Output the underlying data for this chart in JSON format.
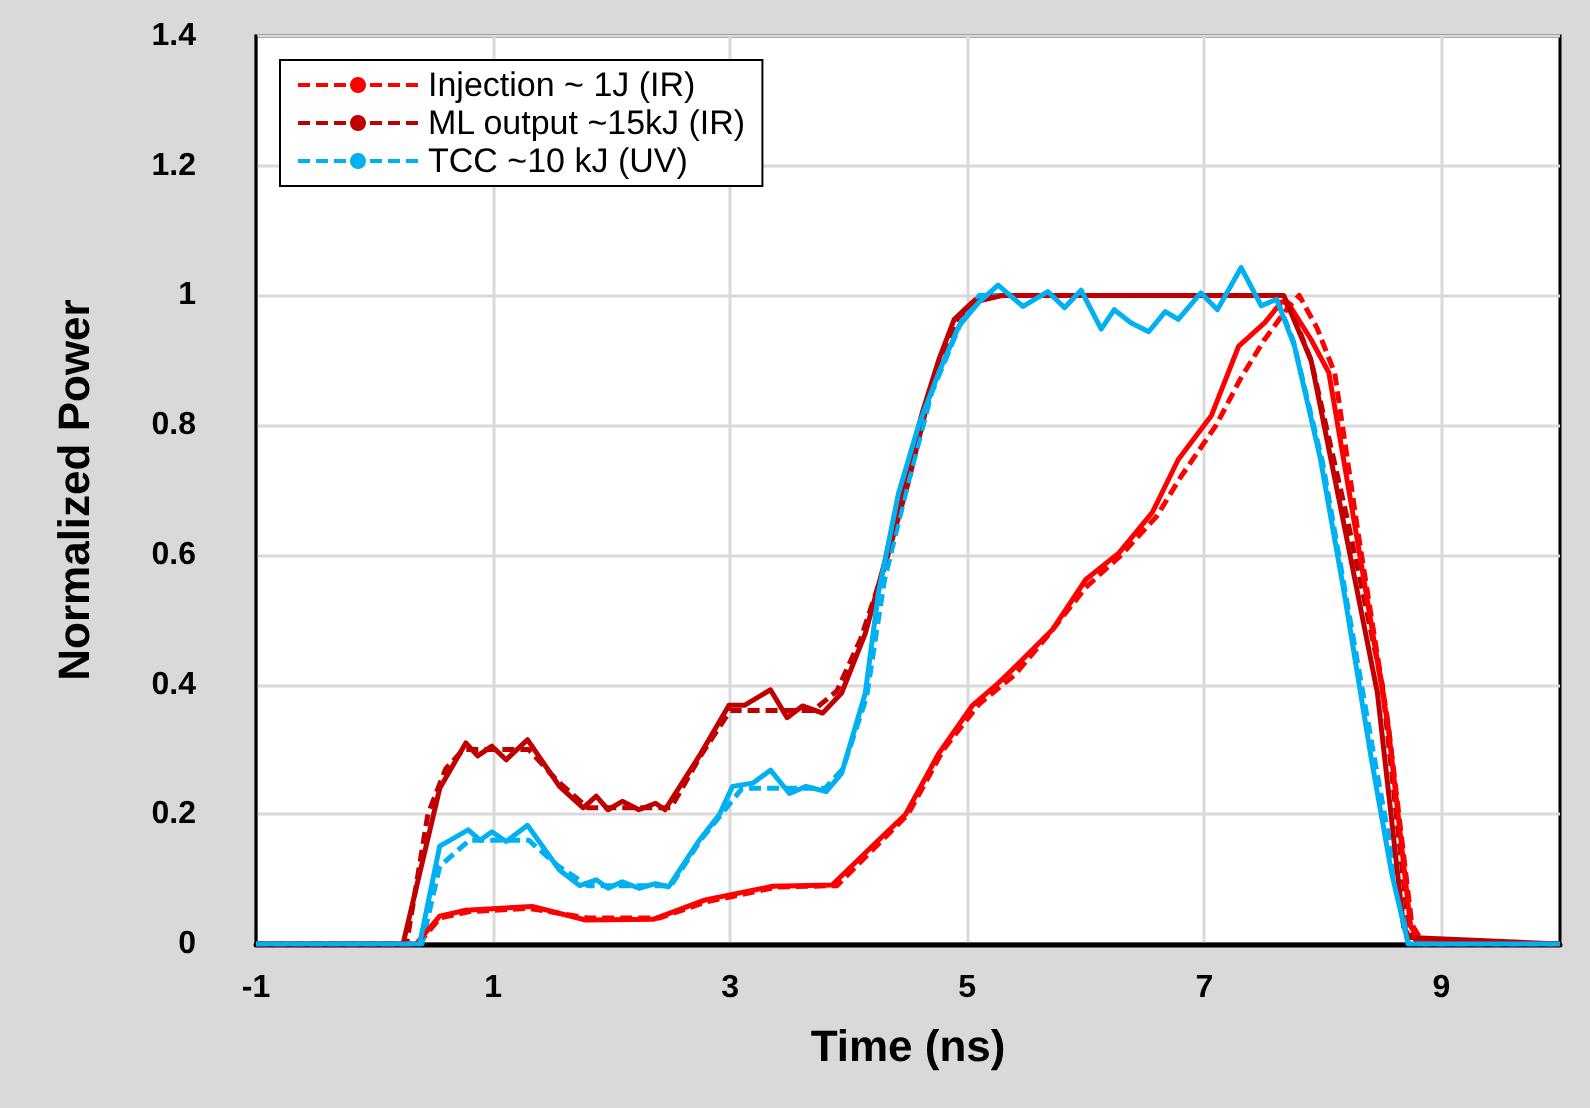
{
  "chart_data": {
    "type": "line",
    "xlabel": "Time (ns)",
    "ylabel": "Normalized Power",
    "xlim": [
      -1,
      10
    ],
    "ylim": [
      0,
      1.4
    ],
    "xticks": [
      -1,
      1,
      3,
      5,
      7,
      9
    ],
    "yticks": [
      0,
      0.2,
      0.4,
      0.6,
      0.8,
      1,
      1.2,
      1.4
    ],
    "grid": true,
    "legend": "top left",
    "marker": "none",
    "series": [
      {
        "name": "Injection ~ 1J (IR)",
        "color": "#ff0000",
        "line_style": "dashed",
        "x": [
          -1,
          0.37,
          0.55,
          0.8,
          1.3,
          1.8,
          2.4,
          2.8,
          3.4,
          3.9,
          4.2,
          4.5,
          4.8,
          5.1,
          5.4,
          5.7,
          6.0,
          6.3,
          6.6,
          6.8,
          7.1,
          7.3,
          7.5,
          7.7,
          7.8,
          7.95,
          8.1,
          8.3,
          8.55,
          8.75,
          8.85,
          10
        ],
        "values": [
          0,
          0,
          0.04,
          0.05,
          0.055,
          0.04,
          0.04,
          0.065,
          0.088,
          0.09,
          0.145,
          0.2,
          0.3,
          0.37,
          0.415,
          0.48,
          0.55,
          0.6,
          0.66,
          0.72,
          0.8,
          0.87,
          0.93,
          0.98,
          1,
          0.95,
          0.88,
          0.63,
          0.34,
          0.03,
          0,
          0
        ]
      },
      {
        "name": "ML output ~15kJ (IR)",
        "color": "#c00000",
        "line_style": "dashed",
        "x": [
          -1,
          0.27,
          0.45,
          0.6,
          0.75,
          1.3,
          1.55,
          1.8,
          2.5,
          2.75,
          3.0,
          3.7,
          3.9,
          4.1,
          4.3,
          4.5,
          4.7,
          4.9,
          5.1,
          7.65,
          7.75,
          7.9,
          8.2,
          8.5,
          8.72,
          8.8,
          10
        ],
        "values": [
          0,
          0,
          0.2,
          0.27,
          0.3,
          0.3,
          0.25,
          0.21,
          0.21,
          0.29,
          0.36,
          0.36,
          0.39,
          0.47,
          0.58,
          0.71,
          0.86,
          0.96,
          1,
          1,
          0.97,
          0.9,
          0.66,
          0.4,
          0.03,
          0,
          0
        ]
      },
      {
        "name": "TCC ~10 kJ (UV)",
        "color": "#00b0f0",
        "line_style": "dashed",
        "x": [
          -1,
          0.4,
          0.55,
          0.8,
          1.3,
          1.55,
          1.8,
          2.5,
          2.75,
          3.1,
          3.8,
          3.95,
          4.15,
          4.3,
          4.5,
          4.7,
          4.95,
          5.1,
          7.6,
          7.75,
          8.0,
          8.2,
          8.45,
          8.72,
          10
        ],
        "values": [
          0,
          0,
          0.12,
          0.16,
          0.16,
          0.12,
          0.09,
          0.09,
          0.16,
          0.24,
          0.24,
          0.27,
          0.38,
          0.56,
          0.71,
          0.85,
          0.96,
          1,
          1,
          0.93,
          0.74,
          0.53,
          0.27,
          0,
          0
        ]
      },
      {
        "color": "#ff0000",
        "line_style": "solid",
        "x": [
          -1,
          0.35,
          0.55,
          0.77,
          1.33,
          1.78,
          2.35,
          2.79,
          3.36,
          3.86,
          4.2,
          4.48,
          4.76,
          5.04,
          5.26,
          5.38,
          5.72,
          6.0,
          6.28,
          6.56,
          6.78,
          7.06,
          7.29,
          7.51,
          7.65,
          7.7,
          7.9,
          8.05,
          8.29,
          8.55,
          8.74,
          8.82,
          10
        ],
        "values": [
          0,
          0,
          0.043,
          0.052,
          0.058,
          0.037,
          0.038,
          0.068,
          0.089,
          0.091,
          0.151,
          0.2,
          0.294,
          0.367,
          0.402,
          0.423,
          0.485,
          0.562,
          0.603,
          0.665,
          0.747,
          0.815,
          0.922,
          0.958,
          0.99,
          0.99,
          0.932,
          0.881,
          0.623,
          0.336,
          0.027,
          0.005,
          0
        ]
      },
      {
        "color": "#c00000",
        "line_style": "solid",
        "x": [
          -1,
          0.24,
          0.55,
          0.77,
          0.87,
          0.99,
          1.11,
          1.29,
          1.56,
          1.76,
          1.87,
          1.97,
          2.09,
          2.23,
          2.37,
          2.45,
          2.74,
          2.99,
          3.12,
          3.34,
          3.48,
          3.61,
          3.78,
          3.94,
          4.14,
          4.31,
          4.47,
          4.62,
          4.76,
          4.89,
          5.04,
          5.3,
          7.67,
          7.9,
          8.18,
          8.46,
          8.68,
          8.73,
          10
        ],
        "values": [
          0,
          0,
          0.24,
          0.31,
          0.29,
          0.305,
          0.284,
          0.315,
          0.243,
          0.21,
          0.228,
          0.207,
          0.22,
          0.207,
          0.217,
          0.207,
          0.29,
          0.368,
          0.368,
          0.392,
          0.349,
          0.367,
          0.356,
          0.387,
          0.479,
          0.593,
          0.716,
          0.819,
          0.901,
          0.963,
          0.989,
          1,
          1,
          0.9,
          0.645,
          0.387,
          0.027,
          0.01,
          0
        ]
      },
      {
        "color": "#00b0f0",
        "line_style": "solid",
        "x": [
          -1,
          0.38,
          0.55,
          0.79,
          0.89,
          0.99,
          1.11,
          1.29,
          1.56,
          1.73,
          1.87,
          1.97,
          2.09,
          2.23,
          2.37,
          2.48,
          2.74,
          2.91,
          3.02,
          3.19,
          3.34,
          3.5,
          3.64,
          3.81,
          3.94,
          4.14,
          4.25,
          4.42,
          4.59,
          4.76,
          4.93,
          5.1,
          5.26,
          5.47,
          5.68,
          5.82,
          5.96,
          6.13,
          6.24,
          6.38,
          6.53,
          6.67,
          6.78,
          6.97,
          7.11,
          7.31,
          7.48,
          7.61,
          7.76,
          7.98,
          8.18,
          8.41,
          8.58,
          8.72,
          10
        ],
        "values": [
          0,
          0,
          0.151,
          0.176,
          0.16,
          0.173,
          0.158,
          0.183,
          0.114,
          0.09,
          0.099,
          0.086,
          0.096,
          0.086,
          0.093,
          0.088,
          0.16,
          0.2,
          0.243,
          0.248,
          0.268,
          0.232,
          0.243,
          0.235,
          0.263,
          0.387,
          0.541,
          0.695,
          0.8,
          0.881,
          0.953,
          0.99,
          1.016,
          0.983,
          1.006,
          0.981,
          1.008,
          0.948,
          0.978,
          0.958,
          0.944,
          0.975,
          0.963,
          1.004,
          0.978,
          1.043,
          0.984,
          0.994,
          0.922,
          0.747,
          0.541,
          0.284,
          0.109,
          0,
          0
        ]
      }
    ]
  }
}
